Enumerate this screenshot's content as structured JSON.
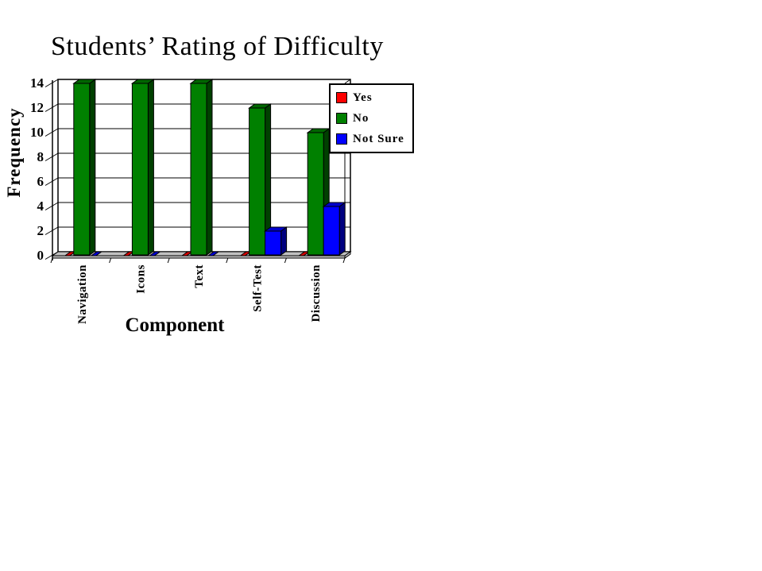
{
  "chart_data": {
    "type": "bar",
    "style": "3d-clustered",
    "title": "Students’ Rating of Difficulty",
    "xlabel": "Component",
    "ylabel": "Frequency",
    "categories": [
      "Navigation",
      "Icons",
      "Text",
      "Self-Test",
      "Discussion"
    ],
    "series": [
      {
        "name": "Yes",
        "color": "#FF0000",
        "values": [
          0,
          0,
          0,
          0,
          0
        ]
      },
      {
        "name": "No",
        "color": "#008000",
        "values": [
          14,
          14,
          14,
          12,
          10
        ]
      },
      {
        "name": "Not Sure",
        "color": "#0000FF",
        "values": [
          0,
          0,
          0,
          2,
          4
        ]
      }
    ],
    "ylim": [
      0,
      14
    ],
    "ytick_interval": 2,
    "yticks": [
      0,
      2,
      4,
      6,
      8,
      10,
      12,
      14
    ],
    "grid": true,
    "legend_position": "top-right",
    "wall_color": "#FFFFFF",
    "floor_color": "#C0C0C0",
    "outline_color": "#000000"
  }
}
